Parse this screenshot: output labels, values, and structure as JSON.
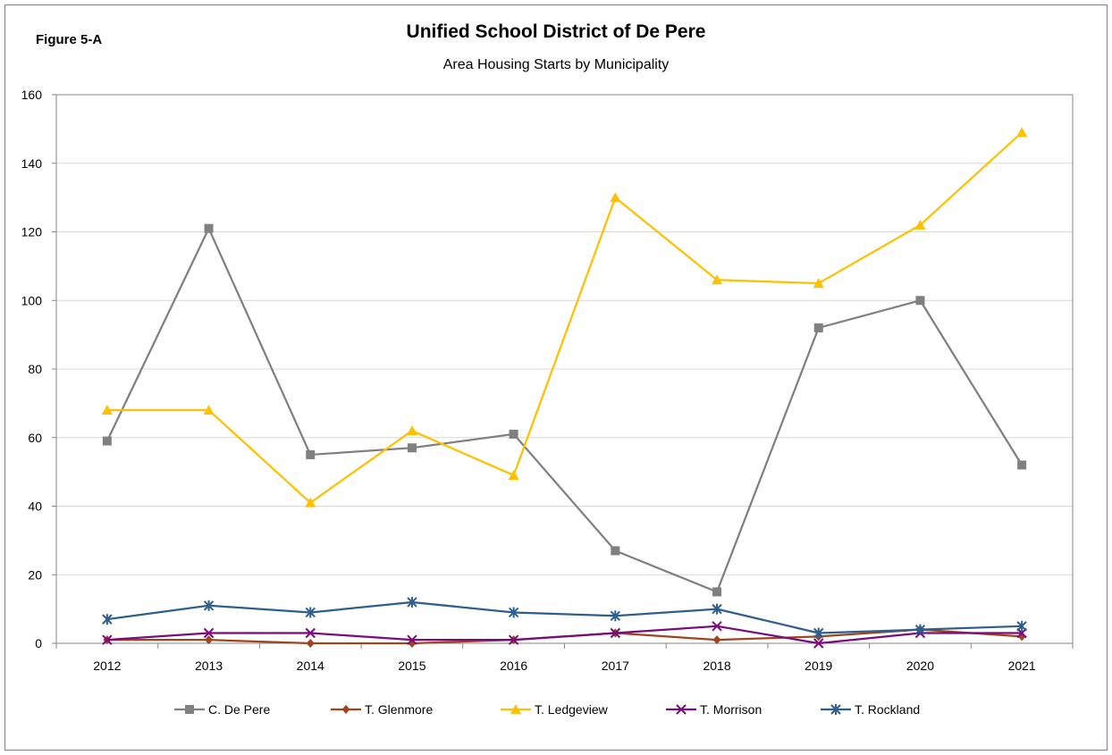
{
  "figure_label": "Figure 5-A",
  "chart_data": {
    "type": "line",
    "title": "Unified School District of De Pere",
    "subtitle": "Area Housing Starts by Municipality",
    "xlabel": "",
    "ylabel": "",
    "categories": [
      "2012",
      "2013",
      "2014",
      "2015",
      "2016",
      "2017",
      "2018",
      "2019",
      "2020",
      "2021"
    ],
    "ylim": [
      0,
      160
    ],
    "yticks": [
      0,
      20,
      40,
      60,
      80,
      100,
      120,
      140,
      160
    ],
    "grid": true,
    "legend_position": "bottom",
    "series": [
      {
        "name": "C. De Pere",
        "color": "#808080",
        "marker": "square",
        "values": [
          59,
          121,
          55,
          57,
          61,
          27,
          15,
          92,
          100,
          52
        ]
      },
      {
        "name": "T. Glenmore",
        "color": "#a0441c",
        "marker": "diamond",
        "values": [
          1,
          1,
          0,
          0,
          1,
          3,
          1,
          2,
          4,
          2
        ]
      },
      {
        "name": "T. Ledgeview",
        "color": "#ffc000",
        "marker": "triangle",
        "values": [
          68,
          68,
          41,
          62,
          49,
          130,
          106,
          105,
          122,
          149
        ]
      },
      {
        "name": "T. Morrison",
        "color": "#7b0a7b",
        "marker": "x",
        "values": [
          1,
          3,
          3,
          1,
          1,
          3,
          5,
          0,
          3,
          3
        ]
      },
      {
        "name": "T. Rockland",
        "color": "#2e5e8e",
        "marker": "asterisk",
        "values": [
          7,
          11,
          9,
          12,
          9,
          8,
          10,
          3,
          4,
          5
        ]
      }
    ]
  }
}
